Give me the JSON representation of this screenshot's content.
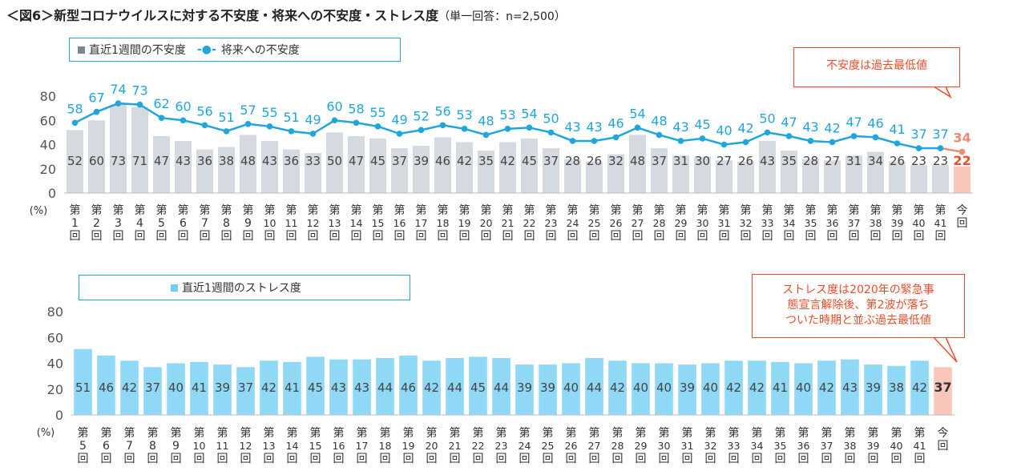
{
  "title": "＜図6＞新型コロナウイルスに対する不安度・将来への不安度・ストレス度",
  "subtitle": "（単一回答：n=2,500）",
  "chart_data": [
    {
      "type": "bar+line",
      "categories": [
        "第1回",
        "第2回",
        "第3回",
        "第4回",
        "第5回",
        "第6回",
        "第7回",
        "第8回",
        "第9回",
        "第10回",
        "第11回",
        "第12回",
        "第13回",
        "第14回",
        "第15回",
        "第16回",
        "第17回",
        "第18回",
        "第19回",
        "第20回",
        "第21回",
        "第22回",
        "第23回",
        "第24回",
        "第25回",
        "第26回",
        "第27回",
        "第28回",
        "第29回",
        "第30回",
        "第31回",
        "第32回",
        "第33回",
        "第34回",
        "第35回",
        "第36回",
        "第37回",
        "第38回",
        "第39回",
        "第40回",
        "第41回",
        "今回"
      ],
      "series": [
        {
          "name": "直近1週間の不安度",
          "kind": "bar",
          "values": [
            52,
            60,
            73,
            71,
            47,
            43,
            36,
            38,
            48,
            43,
            36,
            33,
            50,
            47,
            45,
            37,
            39,
            46,
            42,
            35,
            42,
            45,
            37,
            28,
            26,
            32,
            48,
            37,
            31,
            30,
            27,
            26,
            43,
            35,
            28,
            27,
            31,
            34,
            26,
            23,
            23,
            22
          ]
        },
        {
          "name": "将来への不安度",
          "kind": "line",
          "values": [
            58,
            67,
            74,
            73,
            62,
            60,
            56,
            51,
            57,
            55,
            51,
            49,
            60,
            58,
            55,
            49,
            52,
            56,
            53,
            48,
            53,
            54,
            50,
            43,
            43,
            46,
            54,
            48,
            43,
            45,
            40,
            42,
            50,
            47,
            43,
            42,
            47,
            46,
            41,
            37,
            37,
            34
          ]
        }
      ],
      "ylim": [
        0,
        80
      ],
      "yticks": [
        0,
        20,
        40,
        60,
        80
      ],
      "ylabel": "(%)",
      "annotation": "不安度は過去最低値",
      "colors": {
        "bar": "#d5d9e0",
        "line": "#1fa6dd",
        "highlight_bar": "#f9c6bb",
        "highlight_line": "#f08a72",
        "highlight_text": "#e94d2a"
      }
    },
    {
      "type": "bar",
      "categories": [
        "第5回",
        "第6回",
        "第7回",
        "第8回",
        "第9回",
        "第10回",
        "第11回",
        "第12回",
        "第13回",
        "第14回",
        "第15回",
        "第16回",
        "第17回",
        "第18回",
        "第19回",
        "第20回",
        "第21回",
        "第22回",
        "第23回",
        "第24回",
        "第25回",
        "第26回",
        "第27回",
        "第28回",
        "第29回",
        "第30回",
        "第31回",
        "第32回",
        "第33回",
        "第34回",
        "第35回",
        "第36回",
        "第37回",
        "第38回",
        "第39回",
        "第40回",
        "第41回",
        "今回"
      ],
      "series": [
        {
          "name": "直近1週間のストレス度",
          "kind": "bar",
          "values": [
            51,
            46,
            42,
            37,
            40,
            41,
            39,
            37,
            42,
            41,
            45,
            43,
            43,
            44,
            46,
            42,
            44,
            45,
            44,
            39,
            39,
            40,
            44,
            42,
            40,
            40,
            39,
            40,
            42,
            42,
            41,
            40,
            42,
            43,
            39,
            38,
            42,
            37
          ]
        }
      ],
      "ylim": [
        0,
        80
      ],
      "yticks": [
        0,
        20,
        40,
        60,
        80
      ],
      "ylabel": "(%)",
      "annotation": "ストレス度は2020年の緊急事態宣言解除後、第2波が落ちついた時期と並ぶ過去最低値",
      "annotation_lines": [
        "ストレス度は2020年の緊急事",
        "態宣言解除後、第2波が落ち",
        "ついた時期と並ぶ過去最低値"
      ],
      "colors": {
        "bar": "#8fd9f6",
        "highlight_bar": "#f9c6bb",
        "highlight_text": "#333333"
      }
    }
  ],
  "legend1": {
    "bar_label": "直近1週間の不安度",
    "line_label": "将来への不安度",
    "line_marker": "-●-"
  },
  "legend2": {
    "bar_label": "直近1週間のストレス度"
  },
  "callout1": {
    "text": "不安度は過去最低値"
  }
}
